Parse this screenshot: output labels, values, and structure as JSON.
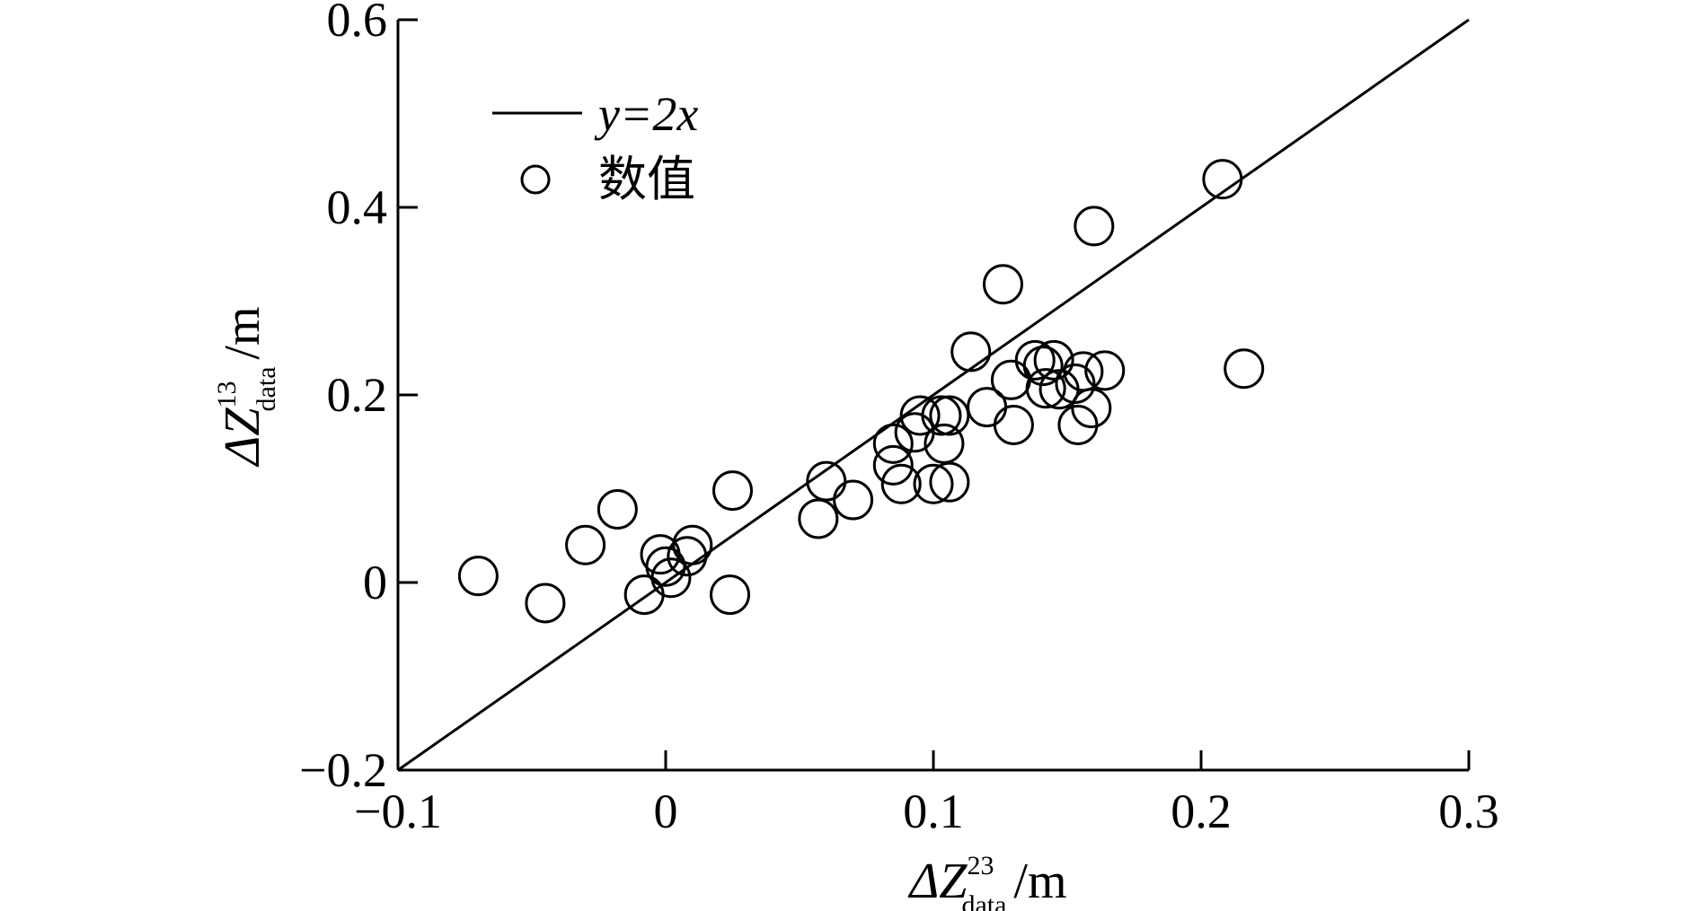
{
  "chart_data": {
    "type": "scatter",
    "xlim": [
      -0.1,
      0.3
    ],
    "ylim": [
      -0.2,
      0.6
    ],
    "x_ticks": [
      -0.1,
      0,
      0.1,
      0.2,
      0.3
    ],
    "y_ticks": [
      -0.2,
      0,
      0.2,
      0.4,
      0.6
    ],
    "x_tick_labels": [
      "−0.1",
      "0",
      "0.1",
      "0.2",
      "0.3"
    ],
    "y_tick_labels": [
      "−0.2",
      "0",
      "0.2",
      "0.4",
      "0.6"
    ],
    "xlabel": {
      "main": "ΔZ",
      "sup": "23",
      "sub": "data",
      "unit": "/m"
    },
    "ylabel": {
      "main": "ΔZ",
      "sup": "13",
      "sub": "data",
      "unit": "/m"
    },
    "grid": false,
    "legend_position": "top-left",
    "series": [
      {
        "name": "y=2x",
        "kind": "line",
        "x": [
          -0.1,
          0.3
        ],
        "y": [
          -0.2,
          0.6
        ]
      },
      {
        "name": "数值",
        "kind": "scatter",
        "marker": "open-circle",
        "points": [
          [
            -0.07,
            0.007
          ],
          [
            -0.045,
            -0.022
          ],
          [
            -0.03,
            0.04
          ],
          [
            -0.018,
            0.078
          ],
          [
            -0.008,
            -0.013
          ],
          [
            -0.002,
            0.03
          ],
          [
            0.0,
            0.017
          ],
          [
            0.002,
            0.005
          ],
          [
            0.008,
            0.028
          ],
          [
            0.01,
            0.04
          ],
          [
            0.024,
            -0.013
          ],
          [
            0.025,
            0.098
          ],
          [
            0.057,
            0.068
          ],
          [
            0.06,
            0.108
          ],
          [
            0.07,
            0.088
          ],
          [
            0.085,
            0.148
          ],
          [
            0.085,
            0.125
          ],
          [
            0.088,
            0.105
          ],
          [
            0.093,
            0.16
          ],
          [
            0.095,
            0.178
          ],
          [
            0.1,
            0.105
          ],
          [
            0.104,
            0.148
          ],
          [
            0.103,
            0.178
          ],
          [
            0.106,
            0.178
          ],
          [
            0.106,
            0.107
          ],
          [
            0.114,
            0.246
          ],
          [
            0.12,
            0.187
          ],
          [
            0.126,
            0.318
          ],
          [
            0.129,
            0.216
          ],
          [
            0.13,
            0.168
          ],
          [
            0.138,
            0.237
          ],
          [
            0.141,
            0.231
          ],
          [
            0.142,
            0.207
          ],
          [
            0.145,
            0.237
          ],
          [
            0.147,
            0.206
          ],
          [
            0.153,
            0.212
          ],
          [
            0.154,
            0.168
          ],
          [
            0.156,
            0.225
          ],
          [
            0.159,
            0.186
          ],
          [
            0.16,
            0.38
          ],
          [
            0.164,
            0.226
          ],
          [
            0.208,
            0.43
          ],
          [
            0.216,
            0.228
          ]
        ]
      }
    ]
  }
}
